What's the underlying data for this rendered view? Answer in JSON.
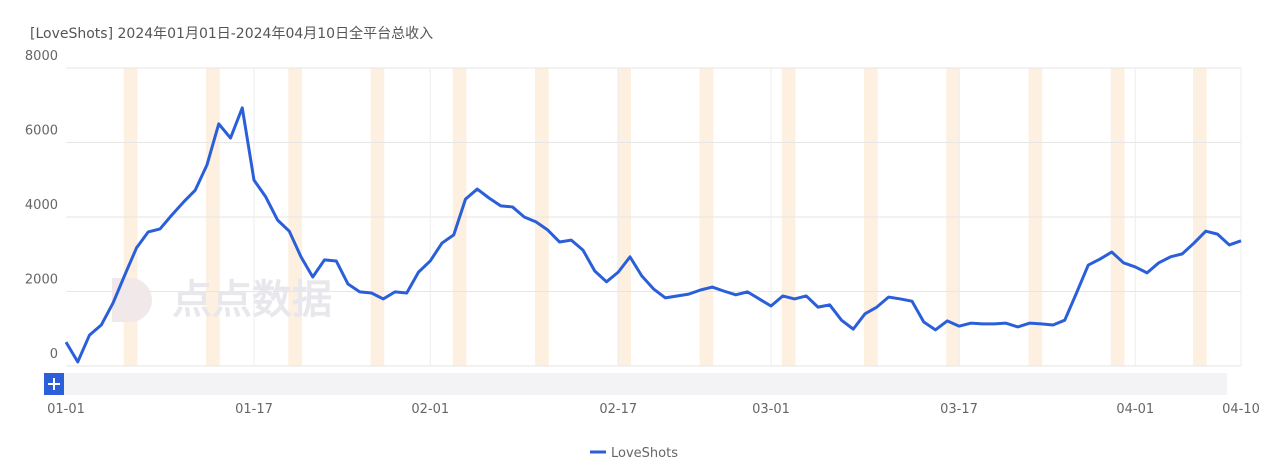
{
  "chart_data": {
    "type": "line",
    "title": "[LoveShots]  2024年01月01日-2024年04月10日全平台总收入",
    "watermark": "点点数据",
    "categories": [
      "01-01",
      null,
      null,
      null,
      null,
      null,
      null,
      null,
      null,
      null,
      null,
      null,
      null,
      null,
      null,
      null,
      "01-17",
      null,
      null,
      null,
      null,
      null,
      null,
      null,
      null,
      null,
      null,
      null,
      null,
      null,
      null,
      "02-01",
      null,
      null,
      null,
      null,
      null,
      null,
      null,
      null,
      null,
      null,
      null,
      null,
      null,
      null,
      null,
      "02-17",
      null,
      null,
      null,
      null,
      null,
      null,
      null,
      null,
      null,
      null,
      null,
      null,
      "03-01",
      null,
      null,
      null,
      null,
      null,
      null,
      null,
      null,
      null,
      null,
      null,
      null,
      null,
      null,
      null,
      "03-17",
      null,
      null,
      null,
      null,
      null,
      null,
      null,
      null,
      null,
      null,
      null,
      null,
      null,
      null,
      "04-01",
      null,
      null,
      null,
      null,
      null,
      null,
      null,
      null,
      "04-10"
    ],
    "series": [
      {
        "name": "LoveShots",
        "color": "#2b5fd9",
        "values": [
          640,
          110,
          830,
          1100,
          1690,
          2440,
          3170,
          3600,
          3680,
          4050,
          4400,
          4720,
          5400,
          6500,
          6120,
          6930,
          4990,
          4540,
          3920,
          3620,
          2930,
          2390,
          2850,
          2820,
          2200,
          1990,
          1960,
          1800,
          1990,
          1960,
          2520,
          2820,
          3300,
          3520,
          4480,
          4750,
          4510,
          4300,
          4270,
          4000,
          3870,
          3650,
          3330,
          3380,
          3110,
          2550,
          2260,
          2520,
          2930,
          2420,
          2070,
          1830,
          1880,
          1930,
          2040,
          2120,
          2010,
          1910,
          1990,
          1800,
          1610,
          1880,
          1800,
          1880,
          1580,
          1640,
          1230,
          990,
          1400,
          1580,
          1850,
          1800,
          1740,
          1180,
          970,
          1210,
          1070,
          1150,
          1130,
          1130,
          1150,
          1050,
          1150,
          1130,
          1100,
          1230,
          1960,
          2710,
          2870,
          3060,
          2770,
          2660,
          2500,
          2770,
          2930,
          3010,
          3300,
          3620,
          3540,
          3250,
          3360
        ]
      }
    ],
    "ylim": [
      0,
      8000
    ],
    "yticks": [
      0,
      2000,
      4000,
      6000,
      8000
    ],
    "grid": true,
    "weekend_shading": true,
    "legend": "bottom"
  }
}
